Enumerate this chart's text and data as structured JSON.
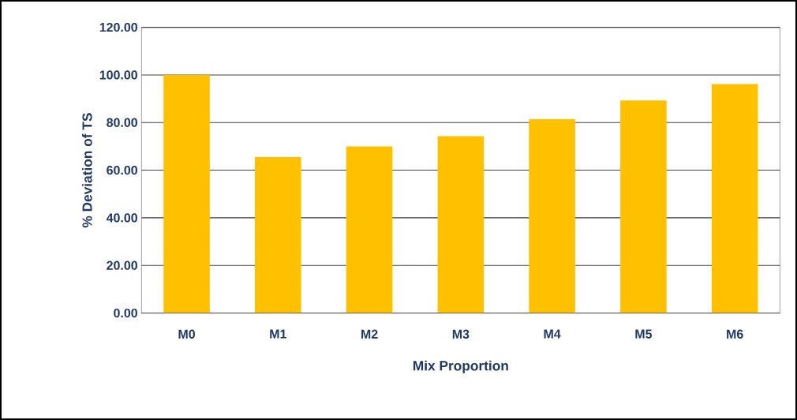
{
  "chart_data": {
    "type": "bar",
    "xlabel": "Mix Proportion",
    "ylabel": "% Deviation of TS",
    "categories": [
      "M0",
      "M1",
      "M2",
      "M3",
      "M4",
      "M5",
      "M6"
    ],
    "values": [
      100,
      65.5,
      70,
      74.3,
      81.4,
      89.3,
      96.2
    ],
    "color": "#ffc000",
    "ylim": [
      0,
      120
    ],
    "yticks": [
      {
        "value": 0,
        "label": "0.00"
      },
      {
        "value": 20,
        "label": "20.00"
      },
      {
        "value": 40,
        "label": "40.00"
      },
      {
        "value": 60,
        "label": "60.00"
      },
      {
        "value": 80,
        "label": "80.00"
      },
      {
        "value": 100,
        "label": "100.00"
      },
      {
        "value": 120,
        "label": "120.00"
      }
    ],
    "grid": "y"
  }
}
